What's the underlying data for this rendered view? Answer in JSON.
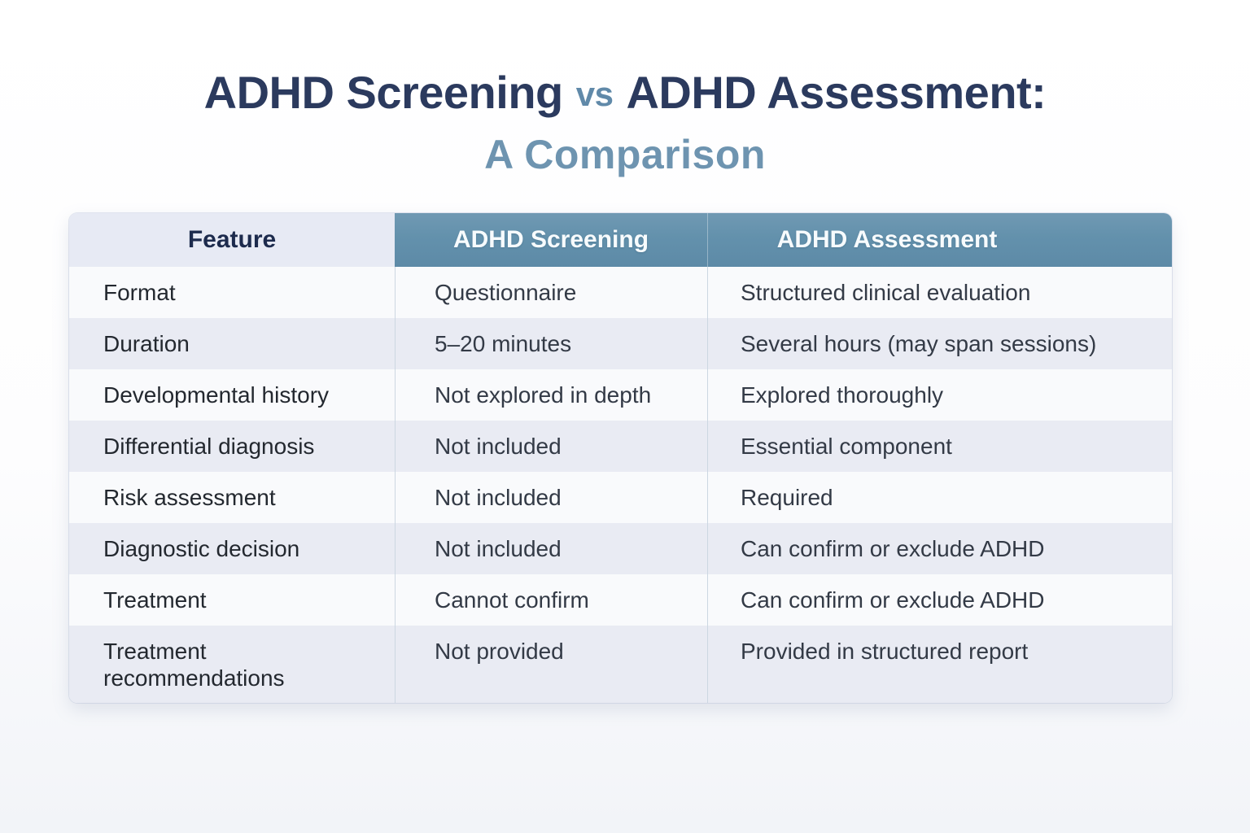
{
  "title": {
    "part1": "ADHD Screening",
    "vs": "vs",
    "part2": "ADHD Assessment:",
    "subtitle": "A Comparison"
  },
  "colors": {
    "title_navy": "#2b3a5e",
    "vs_steel_blue": "#6089a9",
    "subtitle_steel_blue": "#6e94b0",
    "header_teal": "#6391ac",
    "feature_header_bg": "#e7eaf4",
    "feature_header_text": "#1d2b4d",
    "row_stripe_light": "#f9fafc",
    "row_stripe_dark": "#e9ebf3",
    "body_text": "#2e3440",
    "column_divider": "#ccd7e2"
  },
  "chart_data": {
    "type": "table",
    "title": "ADHD Screening vs ADHD Assessment: A Comparison",
    "columns": [
      "Feature",
      "ADHD Screening",
      "ADHD Assessment"
    ],
    "rows": [
      [
        "Format",
        "Questionnaire",
        "Structured clinical evaluation"
      ],
      [
        "Duration",
        "5–20 minutes",
        "Several hours (may span sessions)"
      ],
      [
        "Developmental history",
        "Not explored in depth",
        "Explored thoroughly"
      ],
      [
        "Differential diagnosis",
        "Not included",
        "Essential component"
      ],
      [
        "Risk assessment",
        "Not included",
        "Required"
      ],
      [
        "Diagnostic decision",
        "Not included",
        "Can confirm or exclude ADHD"
      ],
      [
        "Treatment",
        "Cannot confirm",
        "Can confirm or exclude ADHD"
      ],
      [
        "Treatment\nrecommendations",
        "Not provided",
        "Provided in structured report"
      ]
    ]
  }
}
